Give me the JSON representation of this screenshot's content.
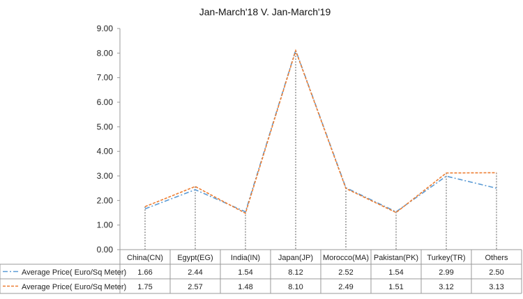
{
  "chart_data": {
    "type": "line",
    "title": "Jan-March'18  V. Jan-March'19",
    "categories": [
      "China(CN)",
      "Egypt(EG)",
      "India(IN)",
      "Japan(JP)",
      "Morocco(MA)",
      "Pakistan(PK)",
      "Turkey(TR)",
      "Others"
    ],
    "series": [
      {
        "name": "Average Price( Euro/Sq Meter)",
        "values": [
          1.66,
          2.44,
          1.54,
          8.12,
          2.52,
          1.54,
          2.99,
          2.5
        ],
        "value_labels": [
          "1.66",
          "2.44",
          "1.54",
          "8.12",
          "2.52",
          "1.54",
          "2.99",
          "2.50"
        ],
        "color": "#5b9bd5",
        "dash": "dash-dot"
      },
      {
        "name": "Average Price( Euro/Sq Meter)",
        "values": [
          1.75,
          2.57,
          1.48,
          8.1,
          2.49,
          1.51,
          3.12,
          3.13
        ],
        "value_labels": [
          "1.75",
          "2.57",
          "1.48",
          "8.10",
          "2.49",
          "1.51",
          "3.12",
          "3.13"
        ],
        "color": "#ed7d31",
        "dash": "dash"
      }
    ],
    "ylim": [
      0,
      9
    ],
    "yticks": [
      "0.00",
      "1.00",
      "2.00",
      "3.00",
      "4.00",
      "5.00",
      "6.00",
      "7.00",
      "8.00",
      "9.00"
    ],
    "grid": false,
    "drop_lines": true,
    "legend": "data-table"
  }
}
